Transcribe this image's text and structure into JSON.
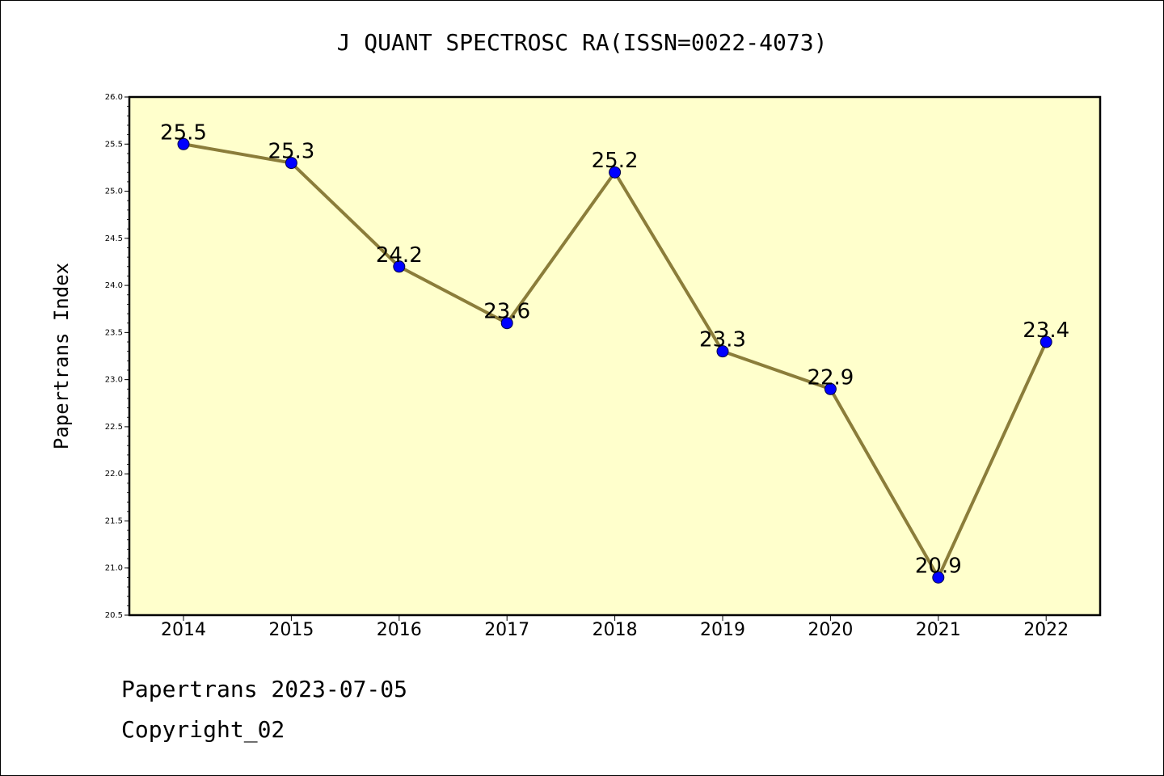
{
  "title": "J QUANT SPECTROSC RA(ISSN=0022-4073)",
  "footer": {
    "line1": "Papertrans 2023-07-05",
    "line2": "Copyright_02"
  },
  "colors": {
    "plot_background": "#ffffcc",
    "line": "#8b7d3a",
    "marker": "#0000ff"
  },
  "chart_data": {
    "type": "line",
    "title": "J QUANT SPECTROSC RA(ISSN=0022-4073)",
    "xlabel": "",
    "ylabel": "Papertrans Index",
    "categories": [
      "2014",
      "2015",
      "2016",
      "2017",
      "2018",
      "2019",
      "2020",
      "2021",
      "2022"
    ],
    "series": [
      {
        "values": [
          25.5,
          25.3,
          24.2,
          23.6,
          25.2,
          23.3,
          22.9,
          20.9,
          23.4
        ],
        "labels": [
          "25.5",
          "25.3",
          "24.2",
          "23.6",
          "25.2",
          "23.3",
          "22.9",
          "20.9",
          "23.4"
        ]
      }
    ],
    "ylim": [
      20.5,
      26.0
    ],
    "yticks": [
      "20.5",
      "21.0",
      "21.5",
      "22.0",
      "22.5",
      "23.0",
      "23.5",
      "24.0",
      "24.5",
      "25.0",
      "25.5",
      "26.0"
    ],
    "grid": false,
    "legend": "none"
  }
}
